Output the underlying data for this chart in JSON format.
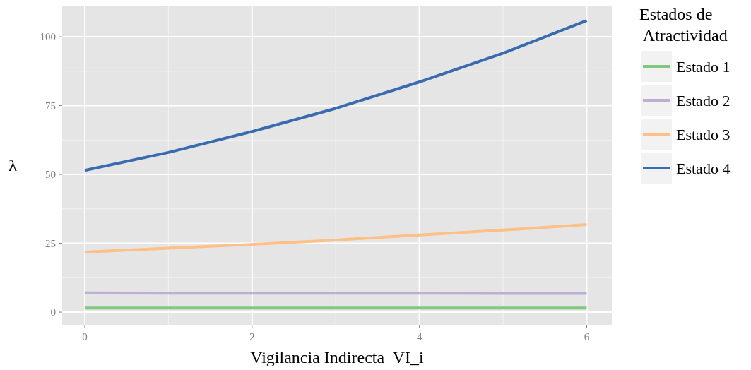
{
  "chart_data": {
    "type": "line",
    "xlabel": "Vigilancia Indirecta  VI_i",
    "ylabel": "λ",
    "legend_title": "Estados de\n Atractividad",
    "legend": "right",
    "grid": true,
    "x": [
      0,
      1,
      2,
      3,
      4,
      5,
      6
    ],
    "xlim": [
      -0.27,
      6.3
    ],
    "xticks": [
      0,
      2,
      4,
      6
    ],
    "ylim": [
      -4.6,
      111.3
    ],
    "yticks": [
      0,
      25,
      50,
      75,
      100
    ],
    "series": [
      {
        "name": "Estado 1",
        "color": "#7fc97f",
        "values": [
          1.5,
          1.5,
          1.5,
          1.5,
          1.5,
          1.5,
          1.5
        ]
      },
      {
        "name": "Estado 2",
        "color": "#beaed4",
        "values": [
          7.0,
          6.9,
          6.9,
          6.9,
          6.9,
          6.8,
          6.8
        ]
      },
      {
        "name": "Estado 3",
        "color": "#fdc086",
        "values": [
          21.8,
          23.2,
          24.6,
          26.2,
          28,
          29.8,
          31.8
        ]
      },
      {
        "name": "Estado 4",
        "color": "#386cb0",
        "values": [
          51.5,
          58,
          65.6,
          74,
          83.6,
          94,
          105.9
        ]
      }
    ]
  }
}
